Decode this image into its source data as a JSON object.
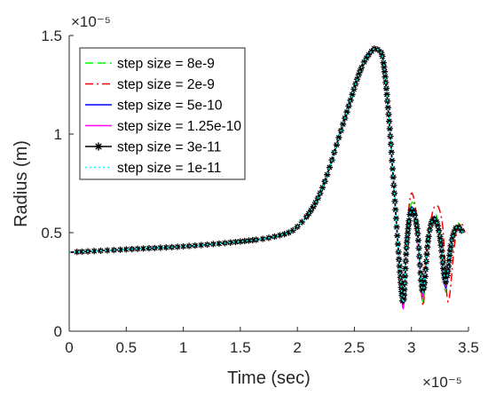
{
  "chart_data": {
    "type": "line",
    "xlabel": "Time (sec)",
    "ylabel": "Radius (m)",
    "x_exponent": "×10⁻⁵",
    "y_exponent": "×10⁻⁵",
    "x_multiplier": 1e-05,
    "y_multiplier": 1e-05,
    "xlim": [
      0,
      3.5
    ],
    "ylim": [
      0,
      1.5
    ],
    "xticks": [
      0,
      0.5,
      1,
      1.5,
      2,
      2.5,
      3,
      3.5
    ],
    "xtick_labels": [
      "0",
      "0.5",
      "1",
      "1.5",
      "2",
      "2.5",
      "3",
      "3.5"
    ],
    "yticks": [
      0,
      0.5,
      1,
      1.5
    ],
    "ytick_labels": [
      "0",
      "0.5",
      "1",
      "1.5"
    ],
    "grid": false,
    "legend_position": "top-left",
    "series": [
      {
        "name": "step size = 8e-9",
        "color": "#00ff00",
        "style": "dashed",
        "x": [
          0,
          0.5,
          1,
          1.5,
          1.8,
          2.0,
          2.2,
          2.4,
          2.55,
          2.65,
          2.7,
          2.75,
          2.8,
          2.85,
          2.9,
          2.93,
          2.96,
          3.0,
          3.05,
          3.1,
          3.15,
          3.2,
          3.25,
          3.3,
          3.35,
          3.4,
          3.45
        ],
        "y": [
          0.4,
          0.415,
          0.43,
          0.455,
          0.48,
          0.53,
          0.7,
          1.05,
          1.32,
          1.42,
          1.43,
          1.38,
          1.1,
          0.7,
          0.3,
          0.15,
          0.45,
          0.65,
          0.55,
          0.15,
          0.5,
          0.6,
          0.5,
          0.2,
          0.45,
          0.55,
          0.5
        ]
      },
      {
        "name": "step size = 2e-9",
        "color": "#ff0000",
        "style": "dashdot",
        "x": [
          0,
          0.5,
          1,
          1.5,
          1.8,
          2.0,
          2.2,
          2.4,
          2.55,
          2.65,
          2.7,
          2.75,
          2.8,
          2.85,
          2.9,
          2.93,
          2.96,
          3.0,
          3.05,
          3.1,
          3.13,
          3.2,
          3.27,
          3.32,
          3.38,
          3.43,
          3.47
        ],
        "y": [
          0.4,
          0.415,
          0.43,
          0.455,
          0.48,
          0.53,
          0.7,
          1.05,
          1.32,
          1.42,
          1.43,
          1.38,
          1.1,
          0.7,
          0.3,
          0.16,
          0.5,
          0.7,
          0.55,
          0.13,
          0.4,
          0.63,
          0.55,
          0.15,
          0.45,
          0.55,
          0.5
        ]
      },
      {
        "name": "step size = 5e-10",
        "color": "#0000ff",
        "style": "solid",
        "x": [
          0,
          0.5,
          1,
          1.5,
          1.8,
          2.0,
          2.2,
          2.4,
          2.55,
          2.65,
          2.7,
          2.75,
          2.8,
          2.85,
          2.9,
          2.93,
          2.96,
          3.0,
          3.05,
          3.1,
          3.15,
          3.2,
          3.25,
          3.3,
          3.35,
          3.4,
          3.45
        ],
        "y": [
          0.4,
          0.415,
          0.43,
          0.455,
          0.48,
          0.53,
          0.7,
          1.05,
          1.32,
          1.42,
          1.43,
          1.38,
          1.1,
          0.7,
          0.3,
          0.14,
          0.45,
          0.63,
          0.5,
          0.18,
          0.48,
          0.58,
          0.48,
          0.22,
          0.45,
          0.53,
          0.5
        ]
      },
      {
        "name": "step size = 1.25e-10",
        "color": "#ff00ff",
        "style": "solid",
        "x": [
          0,
          0.5,
          1,
          1.5,
          1.8,
          2.0,
          2.2,
          2.4,
          2.55,
          2.65,
          2.7,
          2.75,
          2.8,
          2.85,
          2.9,
          2.93,
          2.96,
          3.0,
          3.05,
          3.1,
          3.15,
          3.2,
          3.25,
          3.3,
          3.35,
          3.4,
          3.45
        ],
        "y": [
          0.4,
          0.415,
          0.43,
          0.455,
          0.48,
          0.53,
          0.7,
          1.05,
          1.32,
          1.42,
          1.43,
          1.38,
          1.1,
          0.7,
          0.3,
          0.12,
          0.45,
          0.62,
          0.5,
          0.18,
          0.48,
          0.57,
          0.48,
          0.23,
          0.45,
          0.53,
          0.5
        ]
      },
      {
        "name": "step size = 3e-11",
        "color": "#000000",
        "style": "solid",
        "marker": "star",
        "x": [
          0,
          0.5,
          1,
          1.5,
          1.8,
          2.0,
          2.2,
          2.4,
          2.55,
          2.65,
          2.7,
          2.75,
          2.8,
          2.85,
          2.9,
          2.93,
          2.96,
          3.0,
          3.05,
          3.1,
          3.15,
          3.2,
          3.25,
          3.3,
          3.35,
          3.4,
          3.45
        ],
        "y": [
          0.4,
          0.415,
          0.43,
          0.455,
          0.48,
          0.53,
          0.7,
          1.05,
          1.32,
          1.42,
          1.43,
          1.38,
          1.1,
          0.7,
          0.3,
          0.15,
          0.45,
          0.62,
          0.52,
          0.2,
          0.48,
          0.57,
          0.48,
          0.25,
          0.45,
          0.53,
          0.5
        ]
      },
      {
        "name": "step size = 1e-11",
        "color": "#00ffff",
        "style": "dotted",
        "x": [
          0,
          0.5,
          1,
          1.5,
          1.8,
          2.0,
          2.2,
          2.4,
          2.55,
          2.65,
          2.7,
          2.75,
          2.8,
          2.85,
          2.9,
          2.93,
          2.96,
          3.0,
          3.05,
          3.1,
          3.15,
          3.2,
          3.25,
          3.3,
          3.35,
          3.4,
          3.45
        ],
        "y": [
          0.4,
          0.415,
          0.43,
          0.455,
          0.48,
          0.53,
          0.7,
          1.05,
          1.32,
          1.42,
          1.43,
          1.38,
          1.1,
          0.7,
          0.3,
          0.15,
          0.45,
          0.62,
          0.52,
          0.2,
          0.48,
          0.57,
          0.48,
          0.25,
          0.45,
          0.53,
          0.5
        ]
      }
    ]
  }
}
